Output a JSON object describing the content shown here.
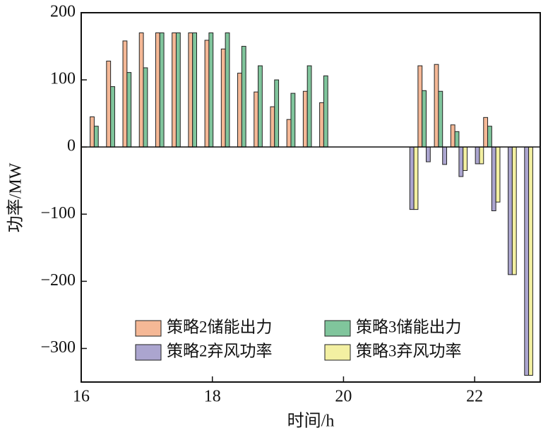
{
  "chart_data": {
    "type": "bar",
    "x_label": "时间/h",
    "y_label": "功率/MW",
    "x": [
      16.25,
      16.5,
      16.75,
      17.0,
      17.25,
      17.5,
      17.75,
      18.0,
      18.25,
      18.5,
      18.75,
      19.0,
      19.25,
      19.5,
      19.75,
      21.25,
      21.5,
      21.75,
      22.0,
      22.25,
      22.5,
      22.75,
      23.0
    ],
    "series": [
      {
        "name": "策略2储能出力",
        "color": "#f5b896",
        "values": [
          45,
          128,
          158,
          170,
          170,
          170,
          170,
          159,
          146,
          110,
          82,
          60,
          41,
          83,
          66,
          121,
          123,
          33,
          0,
          44,
          0,
          0,
          0
        ]
      },
      {
        "name": "策略3储能出力",
        "color": "#80c59c",
        "values": [
          31,
          90,
          111,
          118,
          170,
          170,
          170,
          170,
          170,
          150,
          121,
          100,
          80,
          121,
          106,
          84,
          83,
          23,
          0,
          31,
          0,
          0,
          0
        ]
      },
      {
        "name": "策略2弃风功率",
        "color": "#aba5cf",
        "values": [
          0,
          0,
          0,
          0,
          0,
          0,
          0,
          0,
          0,
          0,
          0,
          0,
          0,
          0,
          0,
          -93,
          -22,
          -26,
          -44,
          -25,
          -95,
          -190,
          -340
        ]
      },
      {
        "name": "策略3弃风功率",
        "color": "#f3f0a2",
        "values": [
          0,
          0,
          0,
          0,
          0,
          0,
          0,
          0,
          0,
          0,
          0,
          0,
          0,
          0,
          0,
          -93,
          0,
          0,
          -35,
          -25,
          -82,
          -190,
          -340
        ]
      }
    ],
    "xlim": [
      16,
      23
    ],
    "xticks": [
      16,
      18,
      20,
      22
    ],
    "ylim": [
      -350,
      200
    ],
    "yticks": [
      {
        "value": -300,
        "label": "−300"
      },
      {
        "value": -200,
        "label": "−200"
      },
      {
        "value": -100,
        "label": "−100"
      },
      0,
      100,
      200
    ],
    "legend": "lower center"
  }
}
